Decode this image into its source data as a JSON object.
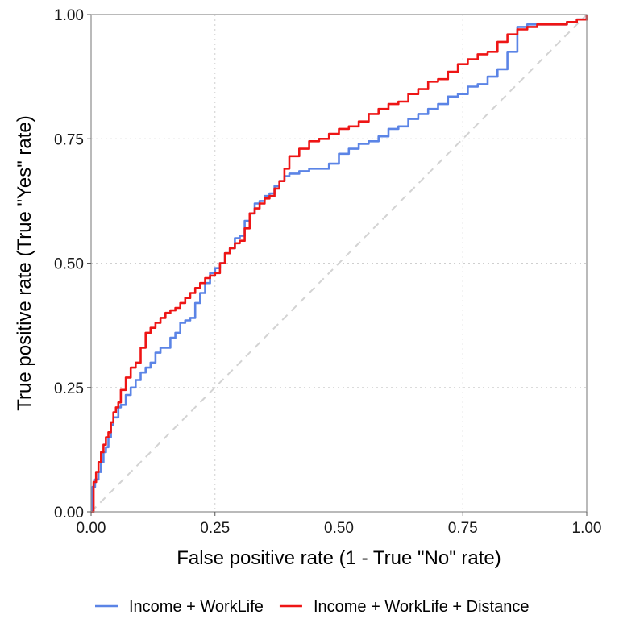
{
  "chart_data": {
    "type": "line",
    "title": "",
    "xlabel": "False positive rate (1 - True \"No\" rate)",
    "ylabel": "True positive rate (True \"Yes\" rate)",
    "xlim": [
      0,
      1
    ],
    "ylim": [
      0,
      1
    ],
    "x_ticks": [
      0,
      0.25,
      0.5,
      0.75,
      1
    ],
    "y_ticks": [
      0,
      0.25,
      0.5,
      0.75,
      1
    ],
    "x_tick_labels": [
      "0.00",
      "0.25",
      "0.50",
      "0.75",
      "1.00"
    ],
    "y_tick_labels": [
      "0.00",
      "0.25",
      "0.50",
      "0.75",
      "1.00"
    ],
    "grid": true,
    "reference_line": {
      "x": [
        0,
        1
      ],
      "y": [
        0,
        1
      ],
      "style": "dashed",
      "color": "#d3d3d3"
    },
    "legend_position": "bottom",
    "series": [
      {
        "name": "Income + WorkLife",
        "color": "#5b84e6",
        "x": [
          0,
          0.003,
          0.008,
          0.015,
          0.02,
          0.025,
          0.03,
          0.035,
          0.04,
          0.045,
          0.05,
          0.055,
          0.06,
          0.07,
          0.08,
          0.09,
          0.1,
          0.11,
          0.12,
          0.13,
          0.14,
          0.15,
          0.16,
          0.17,
          0.18,
          0.19,
          0.2,
          0.21,
          0.22,
          0.23,
          0.24,
          0.25,
          0.26,
          0.27,
          0.28,
          0.29,
          0.3,
          0.31,
          0.32,
          0.33,
          0.34,
          0.35,
          0.36,
          0.37,
          0.38,
          0.39,
          0.4,
          0.42,
          0.44,
          0.46,
          0.48,
          0.5,
          0.52,
          0.54,
          0.56,
          0.58,
          0.6,
          0.62,
          0.64,
          0.66,
          0.68,
          0.7,
          0.72,
          0.74,
          0.76,
          0.78,
          0.8,
          0.82,
          0.84,
          0.86,
          0.88,
          0.9,
          0.92,
          0.94,
          0.96,
          0.98,
          1.0
        ],
        "y": [
          0,
          0.05,
          0.065,
          0.08,
          0.1,
          0.12,
          0.13,
          0.15,
          0.175,
          0.19,
          0.19,
          0.21,
          0.215,
          0.235,
          0.25,
          0.265,
          0.28,
          0.29,
          0.3,
          0.32,
          0.33,
          0.33,
          0.35,
          0.36,
          0.38,
          0.385,
          0.39,
          0.42,
          0.44,
          0.46,
          0.48,
          0.49,
          0.5,
          0.52,
          0.53,
          0.55,
          0.555,
          0.585,
          0.6,
          0.62,
          0.625,
          0.635,
          0.64,
          0.655,
          0.665,
          0.675,
          0.68,
          0.685,
          0.69,
          0.69,
          0.7,
          0.72,
          0.73,
          0.74,
          0.745,
          0.755,
          0.77,
          0.775,
          0.79,
          0.8,
          0.81,
          0.82,
          0.835,
          0.84,
          0.855,
          0.86,
          0.875,
          0.89,
          0.925,
          0.975,
          0.98,
          0.98,
          0.98,
          0.98,
          0.985,
          0.99,
          1.0
        ]
      },
      {
        "name": "Income + WorkLife + Distance",
        "color": "#ee1515",
        "x": [
          0,
          0.005,
          0.01,
          0.015,
          0.02,
          0.025,
          0.03,
          0.035,
          0.04,
          0.045,
          0.05,
          0.055,
          0.06,
          0.07,
          0.08,
          0.09,
          0.1,
          0.11,
          0.12,
          0.13,
          0.14,
          0.15,
          0.16,
          0.17,
          0.18,
          0.19,
          0.2,
          0.21,
          0.22,
          0.23,
          0.24,
          0.25,
          0.26,
          0.27,
          0.28,
          0.29,
          0.3,
          0.31,
          0.32,
          0.33,
          0.34,
          0.35,
          0.36,
          0.37,
          0.38,
          0.39,
          0.4,
          0.42,
          0.44,
          0.46,
          0.48,
          0.5,
          0.52,
          0.54,
          0.56,
          0.58,
          0.6,
          0.62,
          0.64,
          0.66,
          0.68,
          0.7,
          0.72,
          0.74,
          0.76,
          0.78,
          0.8,
          0.82,
          0.84,
          0.86,
          0.88,
          0.9,
          0.92,
          0.94,
          0.96,
          0.98,
          1.0
        ],
        "y": [
          0,
          0.06,
          0.08,
          0.1,
          0.12,
          0.135,
          0.15,
          0.16,
          0.18,
          0.2,
          0.21,
          0.22,
          0.245,
          0.27,
          0.29,
          0.3,
          0.33,
          0.36,
          0.37,
          0.38,
          0.39,
          0.4,
          0.405,
          0.41,
          0.42,
          0.43,
          0.44,
          0.45,
          0.46,
          0.47,
          0.475,
          0.48,
          0.5,
          0.52,
          0.53,
          0.54,
          0.545,
          0.57,
          0.6,
          0.61,
          0.62,
          0.63,
          0.635,
          0.65,
          0.665,
          0.69,
          0.715,
          0.73,
          0.745,
          0.75,
          0.76,
          0.77,
          0.775,
          0.785,
          0.8,
          0.81,
          0.82,
          0.825,
          0.84,
          0.85,
          0.865,
          0.87,
          0.885,
          0.9,
          0.91,
          0.92,
          0.925,
          0.945,
          0.96,
          0.97,
          0.975,
          0.98,
          0.98,
          0.98,
          0.985,
          0.99,
          1.0
        ]
      }
    ]
  }
}
